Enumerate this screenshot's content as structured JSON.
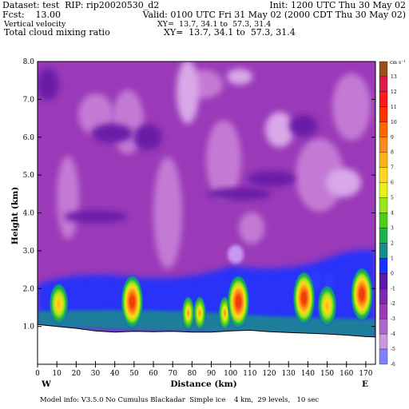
{
  "header": {
    "dataset": "Dataset: test  RIP: rip20020530_d2",
    "init": "Init: 1200 UTC Thu 30 May 02",
    "fcst": "Fcst:    13.00",
    "valid": "Valid: 0100 UTC Fri 31 May 02 (2000 CDT Thu 30 May 02)",
    "field1": "Vertical velocity",
    "field1_xy": "XY=  13.7, 34.1 to  57.3, 31.4",
    "field2": "Total cloud mixing ratio",
    "field2_xy": "XY=  13.7, 34.1 to  57.3, 31.4"
  },
  "footer": {
    "model_info": "Model info: V3.5.0 No Cumulus Blackadar  Simple ice    4 km,  29 levels,   10 sec"
  },
  "colors": {
    "background_fill": "#9a3ab8",
    "upper_blobs": "#c47ad4",
    "light_patches": "#d8a8e8",
    "pale_streaks": "#c898f0",
    "dark_bands": "#6a1aa8",
    "low_blue": "#1a33ff",
    "low_teal": "#1a8c8c",
    "cloud_core": "#ff4000",
    "terrain_fill": "#ffffff"
  },
  "chart_data": {
    "type": "heatmap",
    "xlabel": "Distance (km)",
    "ylabel": "Height (km)",
    "xlim": [
      0,
      175
    ],
    "ylim": [
      0,
      8
    ],
    "x_ticks": [
      0,
      10,
      20,
      30,
      40,
      50,
      60,
      70,
      80,
      90,
      100,
      110,
      120,
      130,
      140,
      150,
      160,
      170
    ],
    "y_ticks": [
      "1.0",
      "2.0",
      "3.0",
      "4.0",
      "5.0",
      "6.0",
      "7.0",
      "8.0"
    ],
    "y_tick_values": [
      1,
      2,
      3,
      4,
      5,
      6,
      7,
      8
    ],
    "x_end_labels": {
      "left": "W",
      "right": "E"
    },
    "colorbar": {
      "unit": "cm s⁻¹",
      "labels": [
        "13",
        "12",
        "11",
        "10",
        "9",
        "8",
        "7",
        "6",
        "5",
        "4",
        "3",
        "2",
        "1",
        "0",
        "-1",
        "-2",
        "-3",
        "-4",
        "-5",
        "-6"
      ],
      "colors": [
        "#9a4f1a",
        "#e01a4a",
        "#ff1a1a",
        "#ff3300",
        "#ff6600",
        "#ff8c1a",
        "#ffb31a",
        "#ffd91a",
        "#e6f21a",
        "#99e61a",
        "#4dcc1a",
        "#1ab34d",
        "#1a8c8c",
        "#1a33ff",
        "#5a1aa8",
        "#7a2ab0",
        "#9a3ab8",
        "#b068c8",
        "#c898e0",
        "#8080ff"
      ]
    },
    "terrain_km": {
      "x": [
        0,
        10,
        20,
        30,
        40,
        50,
        60,
        70,
        80,
        90,
        100,
        110,
        120,
        130,
        140,
        150,
        160,
        170,
        175
      ],
      "height": [
        1.05,
        1.0,
        0.95,
        0.88,
        0.85,
        0.87,
        0.86,
        0.87,
        0.85,
        0.85,
        0.88,
        0.9,
        0.86,
        0.84,
        0.82,
        0.8,
        0.77,
        0.73,
        0.72
      ]
    },
    "cloud_cores": [
      {
        "x": 11,
        "y": 1.6,
        "level": "high"
      },
      {
        "x": 49,
        "y": 1.65,
        "level": "max"
      },
      {
        "x": 78,
        "y": 1.35,
        "level": "mid"
      },
      {
        "x": 84,
        "y": 1.35,
        "level": "mid"
      },
      {
        "x": 97,
        "y": 1.35,
        "level": "mid"
      },
      {
        "x": 104,
        "y": 1.65,
        "level": "max"
      },
      {
        "x": 138,
        "y": 1.75,
        "level": "max"
      },
      {
        "x": 150,
        "y": 1.55,
        "level": "high"
      },
      {
        "x": 168,
        "y": 1.85,
        "level": "max"
      }
    ]
  }
}
